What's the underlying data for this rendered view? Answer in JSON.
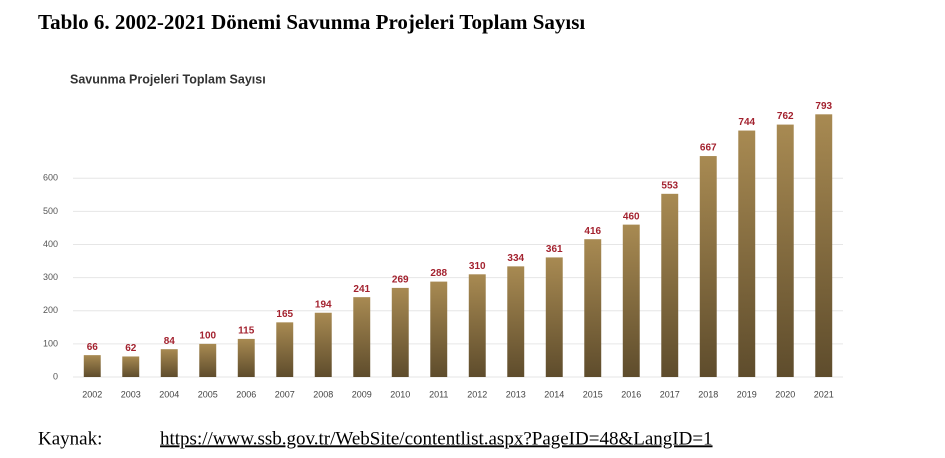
{
  "heading": "Tablo 6.  2002-2021 Dönemi Savunma Projeleri Toplam Sayısı",
  "chart_data": {
    "type": "bar",
    "title": "Savunma Projeleri Toplam Sayısı",
    "categories": [
      "2002",
      "2003",
      "2004",
      "2005",
      "2006",
      "2007",
      "2008",
      "2009",
      "2010",
      "2011",
      "2012",
      "2013",
      "2014",
      "2015",
      "2016",
      "2017",
      "2018",
      "2019",
      "2020",
      "2021"
    ],
    "values": [
      66,
      62,
      84,
      100,
      115,
      165,
      194,
      241,
      269,
      288,
      310,
      334,
      361,
      416,
      460,
      553,
      667,
      744,
      762,
      793
    ],
    "color": "#8a7040",
    "label_color": "#a3222f",
    "ylim": [
      0,
      800
    ],
    "yticks": [
      0,
      100,
      200,
      300,
      400,
      500,
      600
    ],
    "grid": true
  },
  "source": {
    "label": "Kaynak:",
    "url": "https://www.ssb.gov.tr/WebSite/contentlist.aspx?PageID=48&LangID=1"
  }
}
